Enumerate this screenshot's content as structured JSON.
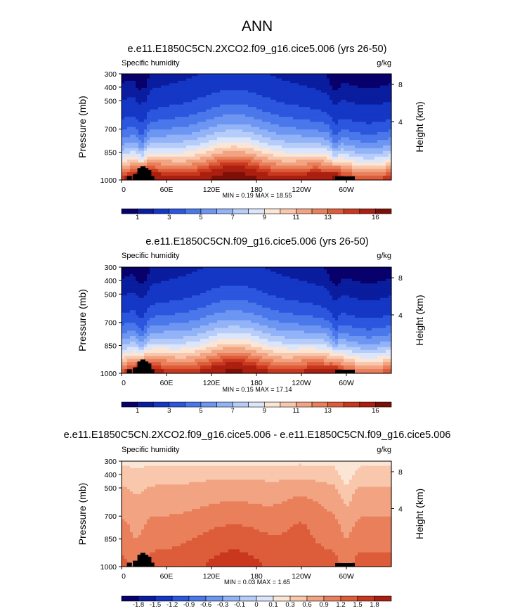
{
  "figure_title": "ANN",
  "chart_data": [
    {
      "type": "heatmap",
      "title": "e.e11.E1850C5CN.2XCO2.f09_g16.cice5.006 (yrs 26-50)",
      "variable": "Specific humidity",
      "units": "g/kg",
      "ylabel": "Pressure (mb)",
      "ylabel_right": "Height (km)",
      "y_ticks": [
        "300",
        "400",
        "500",
        "700",
        "850",
        "1000"
      ],
      "y_ticks_right": [
        "8",
        "4"
      ],
      "x_ticks": [
        "0",
        "60E",
        "120E",
        "180",
        "120W",
        "60W"
      ],
      "stats": "MIN =   0.19  MAX =  18.55",
      "min": 0.19,
      "max": 18.55,
      "colorbar_labels": [
        "1",
        "3",
        "5",
        "7",
        "9",
        "11",
        "13",
        "16"
      ],
      "colorbar_levels": [
        0.5,
        1,
        2,
        3,
        4,
        5,
        6,
        7,
        8,
        9,
        10,
        11,
        12,
        13,
        14,
        16
      ],
      "palette": "diverging-blue-red",
      "scale_factor": 1.0
    },
    {
      "type": "heatmap",
      "title": "e.e11.E1850C5CN.f09_g16.cice5.006 (yrs 26-50)",
      "variable": "Specific humidity",
      "units": "g/kg",
      "ylabel": "Pressure (mb)",
      "ylabel_right": "Height (km)",
      "y_ticks": [
        "300",
        "400",
        "500",
        "700",
        "850",
        "1000"
      ],
      "y_ticks_right": [
        "8",
        "4"
      ],
      "x_ticks": [
        "0",
        "60E",
        "120E",
        "180",
        "120W",
        "60W"
      ],
      "stats": "MIN =   0.15  MAX =  17.14",
      "min": 0.15,
      "max": 17.14,
      "colorbar_labels": [
        "1",
        "3",
        "5",
        "7",
        "9",
        "11",
        "13",
        "16"
      ],
      "colorbar_levels": [
        0.5,
        1,
        2,
        3,
        4,
        5,
        6,
        7,
        8,
        9,
        10,
        11,
        12,
        13,
        14,
        16
      ],
      "palette": "diverging-blue-red",
      "scale_factor": 0.93
    },
    {
      "type": "heatmap",
      "title": "e.e11.E1850C5CN.2XCO2.f09_g16.cice5.006 - e.e11.E1850C5CN.f09_g16.cice5.006",
      "variable": "Specific humidity",
      "units": "g/kg",
      "ylabel": "Pressure (mb)",
      "ylabel_right": "Height (km)",
      "y_ticks": [
        "300",
        "400",
        "500",
        "700",
        "850",
        "1000"
      ],
      "y_ticks_right": [
        "8",
        "4"
      ],
      "x_ticks": [
        "0",
        "60E",
        "120E",
        "180",
        "120W",
        "60W"
      ],
      "stats": "MIN =   0.03  MAX =   1.65",
      "min": 0.03,
      "max": 1.65,
      "colorbar_labels": [
        "-1.8",
        "-1.5",
        "-1.2",
        "-0.9",
        "-0.6",
        "-0.3",
        "-0.1",
        "0",
        "0.1",
        "0.3",
        "0.6",
        "0.9",
        "1.2",
        "1.5",
        "1.8"
      ],
      "colorbar_levels": [
        -1.8,
        -1.5,
        -1.2,
        -0.9,
        -0.6,
        -0.3,
        -0.1,
        0,
        0.1,
        0.3,
        0.6,
        0.9,
        1.2,
        1.5,
        1.8
      ],
      "palette": "diverging-blue-red",
      "scale_factor": 1.0
    }
  ],
  "colors": {
    "palette": [
      "#08006b",
      "#0a1d9e",
      "#1537c5",
      "#2b56dd",
      "#4a78eb",
      "#6d96f3",
      "#92b3f7",
      "#b7cdf9",
      "#dbe5fb",
      "#fbe6d6",
      "#f8c7ac",
      "#f2a482",
      "#e9805b",
      "#dd5c39",
      "#c9381e",
      "#aa1f0f",
      "#7e0f07"
    ],
    "topography": "#000000"
  }
}
